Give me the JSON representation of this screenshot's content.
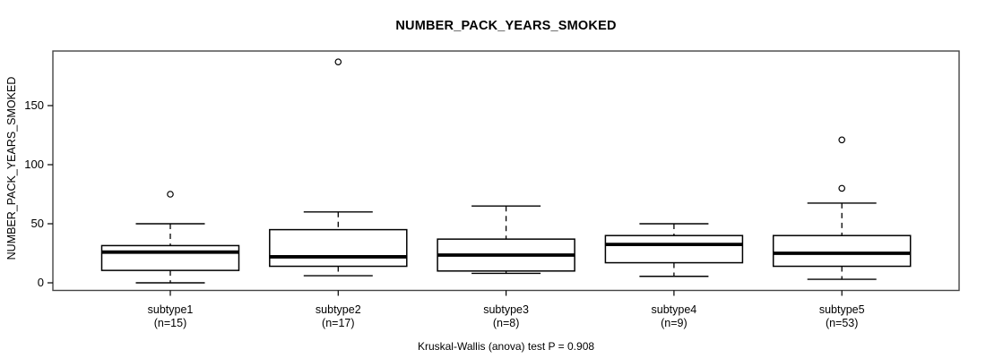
{
  "chart_data": {
    "type": "boxplot",
    "title": "NUMBER_PACK_YEARS_SMOKED",
    "ylabel": "NUMBER_PACK_YEARS_SMOKED",
    "xlabel": "",
    "footnote": "Kruskal-Wallis (anova) test P = 0.908",
    "yticks": [
      0,
      50,
      100,
      150
    ],
    "ylim": [
      -6,
      196
    ],
    "grid": false,
    "legend": "none",
    "colors": {
      "background": "#ffffff",
      "stroke": "#000000",
      "frame": "#444444",
      "box_fill": "#ffffff"
    },
    "groups": [
      {
        "label": "subtype1",
        "sublabel": "(n=15)",
        "n": 15,
        "whisker_low": 0,
        "q1": 10.5,
        "median": 26,
        "q3": 31.5,
        "whisker_high": 50,
        "outliers": [
          75
        ]
      },
      {
        "label": "subtype2",
        "sublabel": "(n=17)",
        "n": 17,
        "whisker_low": 6,
        "q1": 14,
        "median": 22,
        "q3": 45,
        "whisker_high": 60,
        "outliers": [
          187
        ]
      },
      {
        "label": "subtype3",
        "sublabel": "(n=8)",
        "n": 8,
        "whisker_low": 8,
        "q1": 10,
        "median": 23.5,
        "q3": 37,
        "whisker_high": 65,
        "outliers": []
      },
      {
        "label": "subtype4",
        "sublabel": "(n=9)",
        "n": 9,
        "whisker_low": 5.5,
        "q1": 17,
        "median": 32.5,
        "q3": 40,
        "whisker_high": 50,
        "outliers": []
      },
      {
        "label": "subtype5",
        "sublabel": "(n=53)",
        "n": 53,
        "whisker_low": 3,
        "q1": 14,
        "median": 25,
        "q3": 40,
        "whisker_high": 67.5,
        "outliers": [
          80,
          121
        ]
      }
    ]
  }
}
